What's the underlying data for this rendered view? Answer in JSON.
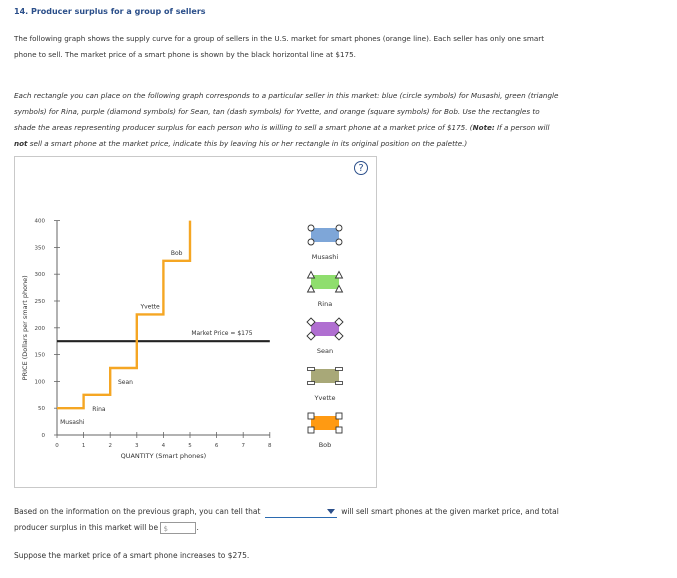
{
  "question": {
    "title": "14. Producer surplus for a group of sellers",
    "intro_line1": "The following graph shows the supply curve for a group of sellers in the U.S. market for smart phones (orange line). Each seller has only one smart",
    "intro_line2": "phone to sell. The market price of a smart phone is shown by the black horizontal line at $175.",
    "instr_line1": "Each rectangle you can place on the following graph corresponds to a particular seller in this market: blue (circle symbols) for Musashi, green (triangle",
    "instr_line2": "symbols) for Rina, purple (diamond symbols) for Sean, tan (dash symbols) for Yvette, and orange (square symbols) for Bob. Use the rectangles to",
    "instr_line3a": "shade the areas representing producer surplus for each person who is willing to sell a smart phone at a market price of $175. (",
    "instr_note": "Note:",
    "instr_line3b": " If a person will",
    "instr_not": "not",
    "instr_line4": " sell a smart phone at the market price, indicate this by leaving his or her rectangle in its original position on the palette.)",
    "help_symbol": "?"
  },
  "chart_data": {
    "type": "line",
    "title": "",
    "xlabel": "QUANTITY (Smart phones)",
    "ylabel": "PRICE (Dollars per smart phone)",
    "xlim": [
      0,
      8
    ],
    "ylim": [
      0,
      400
    ],
    "x_ticks": [
      0,
      1,
      2,
      3,
      4,
      5,
      6,
      7,
      8
    ],
    "y_ticks": [
      0,
      50,
      100,
      150,
      200,
      250,
      300,
      350,
      400
    ],
    "supply_steps": [
      {
        "seller": "Musashi",
        "x_start": 0,
        "x_end": 1,
        "price": 50
      },
      {
        "seller": "Rina",
        "x_start": 1,
        "x_end": 2,
        "price": 75
      },
      {
        "seller": "Sean",
        "x_start": 2,
        "x_end": 3,
        "price": 125
      },
      {
        "seller": "Yvette",
        "x_start": 3,
        "x_end": 4,
        "price": 225
      },
      {
        "seller": "Bob",
        "x_start": 4,
        "x_end": 5,
        "price": 325
      }
    ],
    "supply_top": 400,
    "market_price": 175,
    "market_price_label": "Market Price = $175",
    "supply_color": "#f5a623",
    "price_line_color": "#222222"
  },
  "palette": [
    {
      "name": "Musashi",
      "color": "#7ea6d8",
      "symbol": "circle"
    },
    {
      "name": "Rina",
      "color": "#8fde6e",
      "symbol": "triangle"
    },
    {
      "name": "Sean",
      "color": "#b06fd1",
      "symbol": "diamond"
    },
    {
      "name": "Yvette",
      "color": "#a8a878",
      "symbol": "dash"
    },
    {
      "name": "Bob",
      "color": "#ff9a12",
      "symbol": "square"
    }
  ],
  "followup": {
    "text_a": "Based on the information on the previous graph, you can tell that",
    "text_b": "will sell smart phones at the given market price, and total",
    "text_c": "producer surplus in this market will be",
    "dollar_placeholder": "$",
    "text_d": ".",
    "text_e": "Suppose the market price of a smart phone increases to $275."
  }
}
